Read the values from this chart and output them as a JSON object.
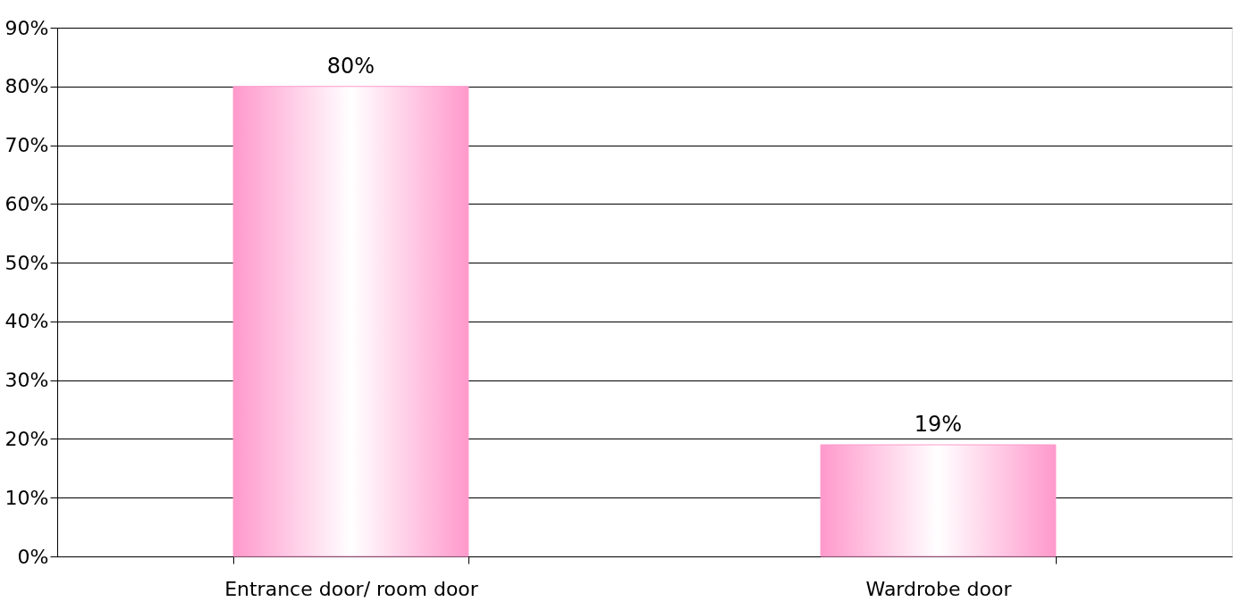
{
  "chart_data": {
    "type": "bar",
    "categories": [
      "Entrance door/ room door",
      "Wardrobe door"
    ],
    "values": [
      80,
      19
    ],
    "value_labels": [
      "80%",
      "19%"
    ],
    "color": "#ff99cc",
    "ylim": [
      0,
      90
    ],
    "yticks": [
      {
        "value": 0,
        "label": "0%"
      },
      {
        "value": 10,
        "label": "10%"
      },
      {
        "value": 20,
        "label": "20%"
      },
      {
        "value": 30,
        "label": "30%"
      },
      {
        "value": 40,
        "label": "40%"
      },
      {
        "value": 50,
        "label": "50%"
      },
      {
        "value": 60,
        "label": "60%"
      },
      {
        "value": 70,
        "label": "70%"
      },
      {
        "value": 80,
        "label": "80%"
      },
      {
        "value": 90,
        "label": "90%"
      }
    ],
    "grid": "y"
  }
}
